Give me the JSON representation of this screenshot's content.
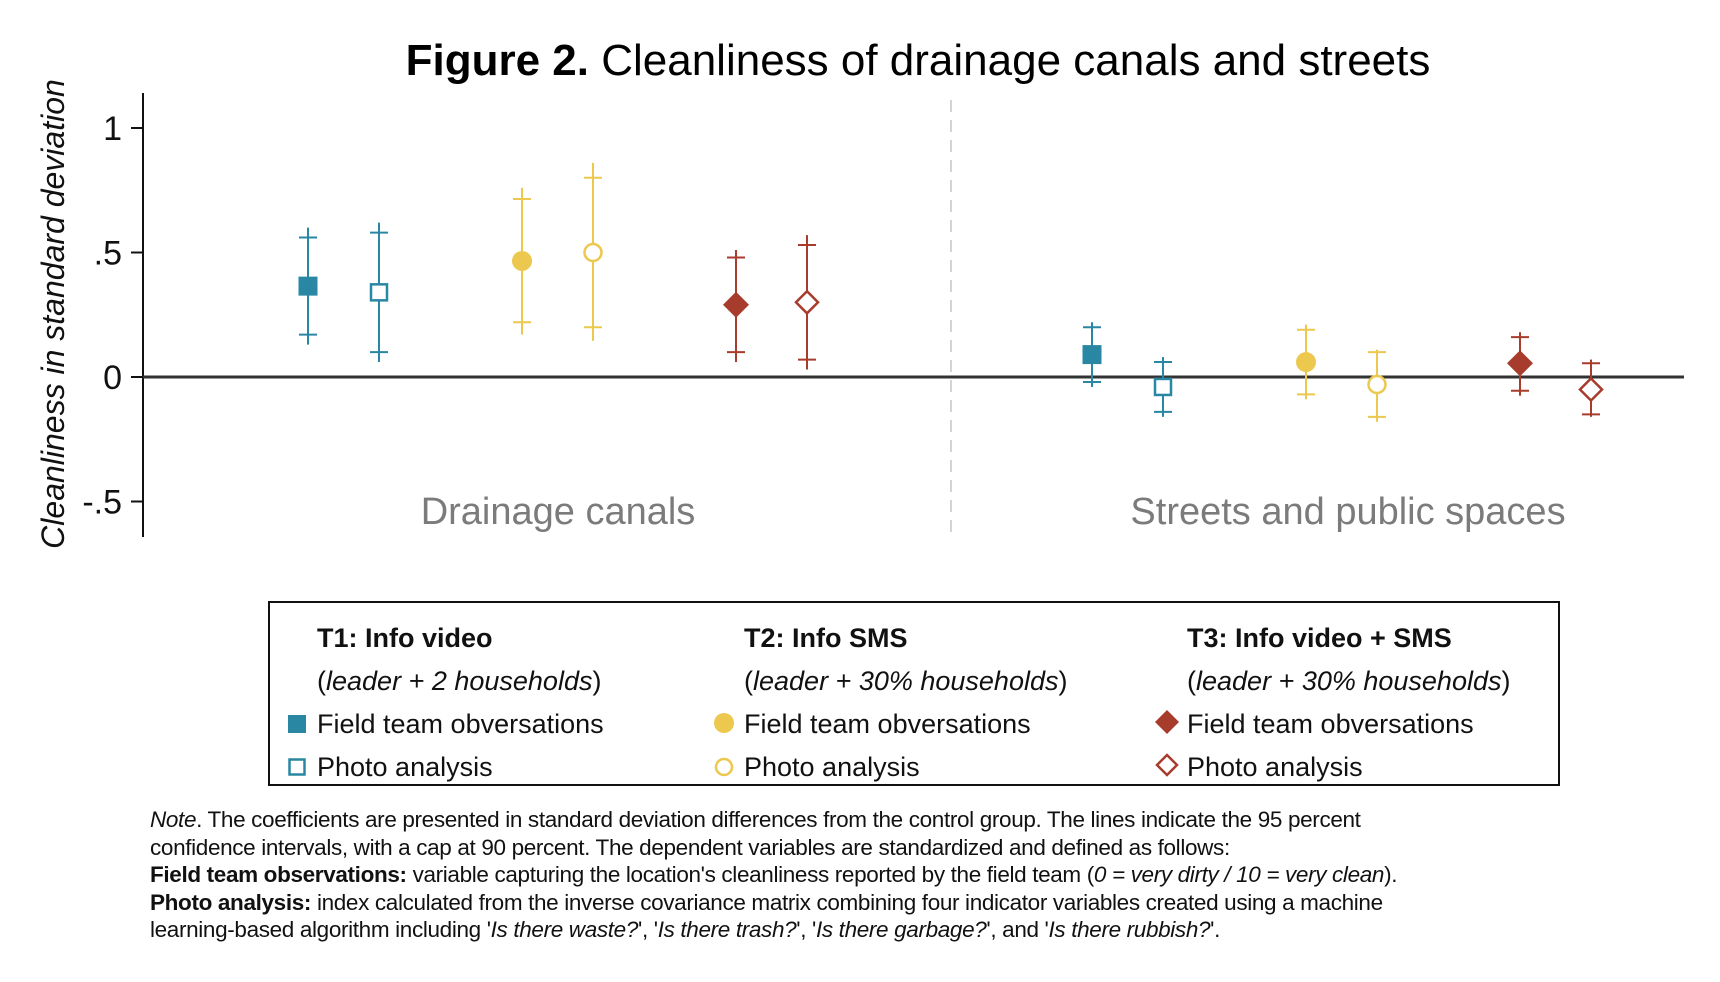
{
  "chart_data": {
    "type": "scatter",
    "subtype": "coefficient-plot-with-confidence-intervals",
    "title_bold": "Figure 2.",
    "title_rest": " Cleanliness of drainage canals and streets",
    "ylabel": "Cleanliness in standard deviation",
    "xlabel": "",
    "ylim": [
      -0.64,
      1.14
    ],
    "yticks": [
      {
        "value": 1,
        "label": "1"
      },
      {
        "value": 0.5,
        "label": ".5"
      },
      {
        "value": 0,
        "label": "0"
      },
      {
        "value": -0.5,
        "label": "-.5"
      }
    ],
    "grid": false,
    "reference_line": 0,
    "panels": [
      {
        "label": "Drainage canals"
      },
      {
        "label": "Streets and public spaces"
      }
    ],
    "series": [
      {
        "name": "T1 Field team obversations",
        "treatment": "T1",
        "measure": "field",
        "color": "#2a87a3",
        "marker": "square",
        "filled": true,
        "points": [
          {
            "panel": 0,
            "estimate": 0.365,
            "ci95": [
              0.13,
              0.6
            ],
            "ci90": [
              0.17,
              0.56
            ]
          },
          {
            "panel": 1,
            "estimate": 0.09,
            "ci95": [
              -0.04,
              0.22
            ],
            "ci90": [
              -0.02,
              0.2
            ]
          }
        ]
      },
      {
        "name": "T1 Photo analysis",
        "treatment": "T1",
        "measure": "photo",
        "color": "#2a87a3",
        "marker": "square",
        "filled": false,
        "points": [
          {
            "panel": 0,
            "estimate": 0.34,
            "ci95": [
              0.06,
              0.62
            ],
            "ci90": [
              0.1,
              0.58
            ]
          },
          {
            "panel": 1,
            "estimate": -0.04,
            "ci95": [
              -0.16,
              0.08
            ],
            "ci90": [
              -0.14,
              0.06
            ]
          }
        ]
      },
      {
        "name": "T2 Field team obversations",
        "treatment": "T2",
        "measure": "field",
        "color": "#ecc84f",
        "marker": "circle",
        "filled": true,
        "points": [
          {
            "panel": 0,
            "estimate": 0.466,
            "ci95": [
              0.17,
              0.76
            ],
            "ci90": [
              0.22,
              0.715
            ]
          },
          {
            "panel": 1,
            "estimate": 0.06,
            "ci95": [
              -0.09,
              0.21
            ],
            "ci90": [
              -0.07,
              0.19
            ]
          }
        ]
      },
      {
        "name": "T2 Photo analysis",
        "treatment": "T2",
        "measure": "photo",
        "color": "#ecc84f",
        "marker": "circle",
        "filled": false,
        "points": [
          {
            "panel": 0,
            "estimate": 0.5,
            "ci95": [
              0.145,
              0.86
            ],
            "ci90": [
              0.2,
              0.8
            ]
          },
          {
            "panel": 1,
            "estimate": -0.03,
            "ci95": [
              -0.18,
              0.11
            ],
            "ci90": [
              -0.16,
              0.1
            ]
          }
        ]
      },
      {
        "name": "T3 Field team obversations",
        "treatment": "T3",
        "measure": "field",
        "color": "#a83c2c",
        "marker": "diamond",
        "filled": true,
        "points": [
          {
            "panel": 0,
            "estimate": 0.29,
            "ci95": [
              0.06,
              0.51
            ],
            "ci90": [
              0.1,
              0.48
            ]
          },
          {
            "panel": 1,
            "estimate": 0.055,
            "ci95": [
              -0.075,
              0.18
            ],
            "ci90": [
              -0.055,
              0.16
            ]
          }
        ]
      },
      {
        "name": "T3 Photo analysis",
        "treatment": "T3",
        "measure": "photo",
        "color": "#a83c2c",
        "marker": "diamond",
        "filled": false,
        "points": [
          {
            "panel": 0,
            "estimate": 0.3,
            "ci95": [
              0.03,
              0.57
            ],
            "ci90": [
              0.07,
              0.53
            ]
          },
          {
            "panel": 1,
            "estimate": -0.05,
            "ci95": [
              -0.16,
              0.07
            ],
            "ci90": [
              -0.15,
              0.055
            ]
          }
        ]
      }
    ],
    "legend": {
      "placement": "bottom",
      "groups": [
        {
          "heading": "T1: Info video",
          "sub_open": "(",
          "sub_italic": "leader + 2 households",
          "sub_close": ")",
          "field_label": "Field team obversations",
          "photo_label": "Photo analysis",
          "color": "#2a87a3",
          "marker": "square"
        },
        {
          "heading": "T2: Info SMS",
          "sub_open": "(",
          "sub_italic": "leader + 30% households",
          "sub_close": ")",
          "field_label": "Field team obversations",
          "photo_label": "Photo analysis",
          "color": "#ecc84f",
          "marker": "circle"
        },
        {
          "heading": "T3: Info video + SMS",
          "sub_open": "(",
          "sub_italic": "leader + 30% households",
          "sub_close": ")",
          "field_label": "Field team obversations",
          "photo_label": "Photo analysis",
          "color": "#a83c2c",
          "marker": "diamond"
        }
      ]
    }
  },
  "notes": {
    "line1_italic": "Note",
    "line1_rest": ". The coefficients are presented in standard deviation differences from the control group. The lines indicate the 95 percent",
    "line2": "confidence intervals, with a cap at 90 percent. The dependent variables are standardized and defined as follows:",
    "line3_bold": "Field team observations:",
    "line3_rest": " variable capturing the location's cleanliness reported by the field team (",
    "line3_italic": "0 = very dirty / 10 = very clean",
    "line3_end": ").",
    "line4_bold": "Photo analysis:",
    "line4_rest": " index calculated from the inverse covariance matrix combining four indicator variables created using a machine",
    "line5_a": "learning-based algorithm including '",
    "line5_i1": "Is there waste?",
    "line5_b": "', '",
    "line5_i2": "Is there trash?",
    "line5_c": "', '",
    "line5_i3": "Is there garbage?",
    "line5_d": "', and '",
    "line5_i4": "Is there rubbish?",
    "line5_e": "'."
  }
}
